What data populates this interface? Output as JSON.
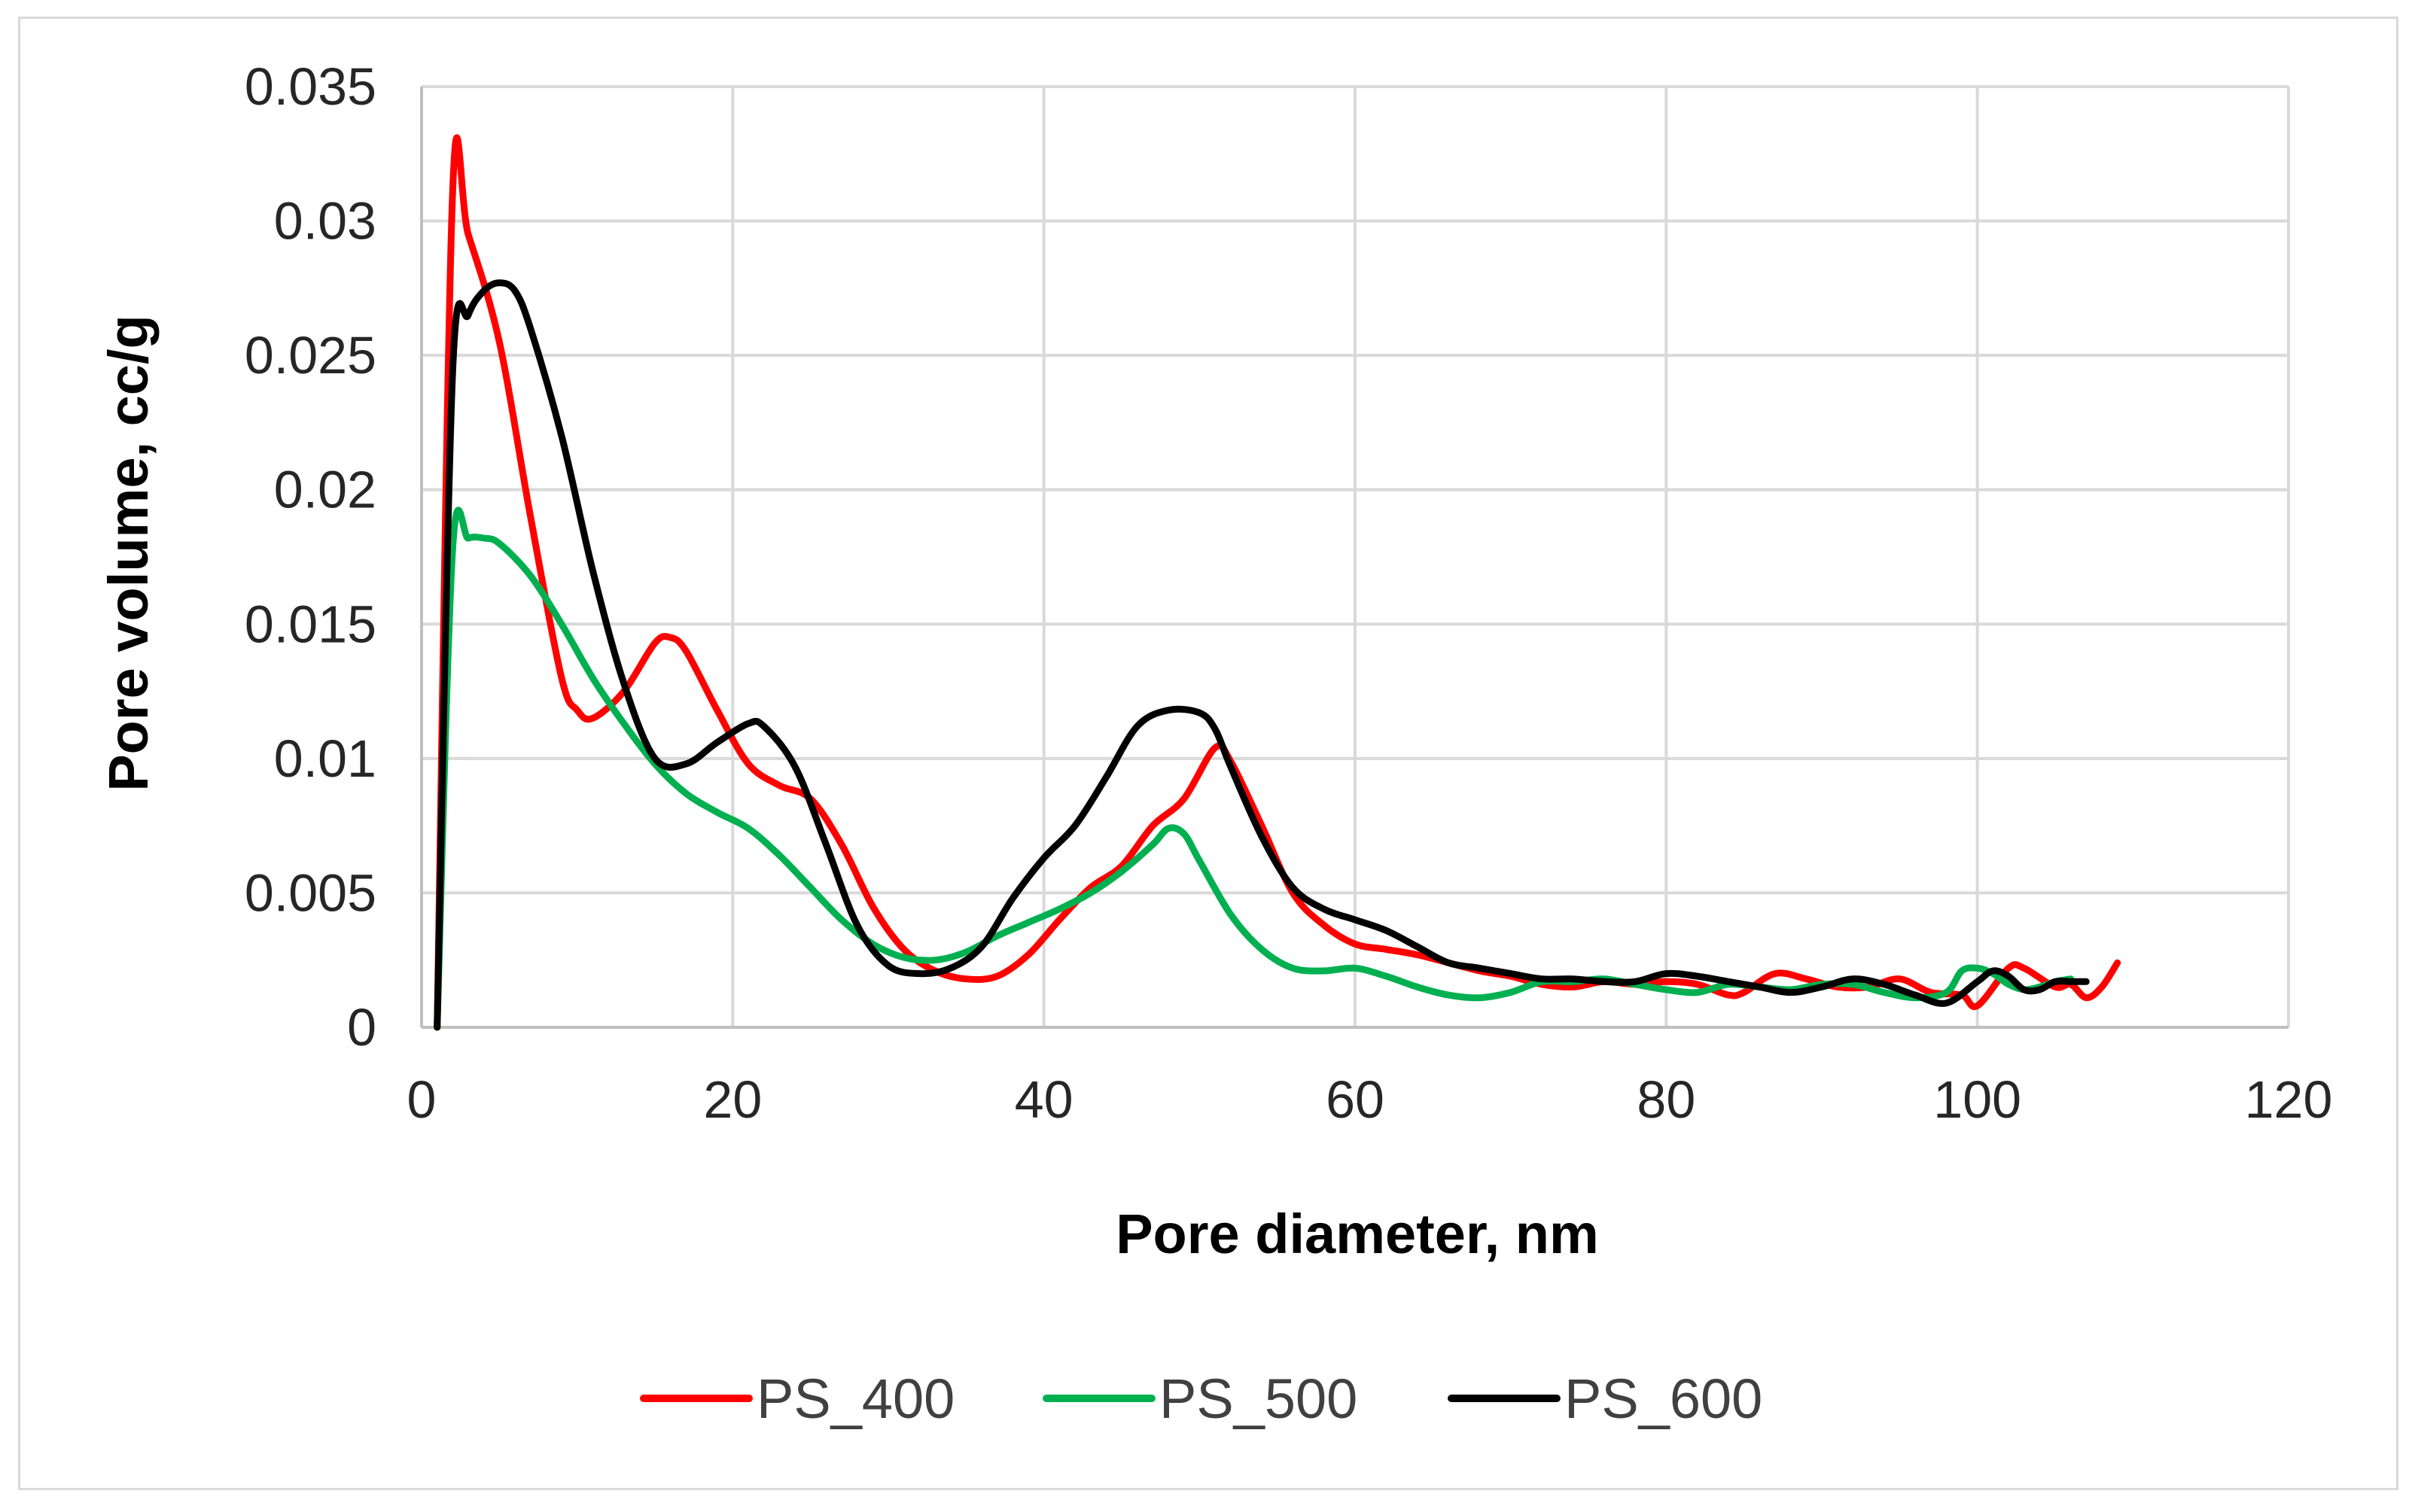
{
  "chart_data": {
    "type": "line",
    "xlabel": "Pore diameter, nm",
    "ylabel": "Pore volume, cc/g",
    "xlim": [
      0,
      120
    ],
    "ylim": [
      0,
      0.035
    ],
    "xticks": [
      0,
      20,
      40,
      60,
      80,
      100,
      120
    ],
    "yticks": [
      0,
      0.005,
      0.01,
      0.015,
      0.02,
      0.025,
      0.03,
      0.035
    ],
    "xtick_labels": [
      "0",
      "20",
      "40",
      "60",
      "80",
      "100",
      "120"
    ],
    "ytick_labels": [
      "0",
      "0.005",
      "0.01",
      "0.015",
      "0.02",
      "0.025",
      "0.03",
      "0.035"
    ],
    "grid": true,
    "legend_position": "bottom",
    "series": [
      {
        "name": "PS_400",
        "color": "#ff0000",
        "points": [
          [
            1,
            0
          ],
          [
            2,
            0.0311
          ],
          [
            3,
            0.0295
          ],
          [
            5,
            0.0255
          ],
          [
            7,
            0.019
          ],
          [
            9,
            0.013
          ],
          [
            10,
            0.0118
          ],
          [
            11,
            0.0115
          ],
          [
            13,
            0.0125
          ],
          [
            15,
            0.0143
          ],
          [
            16,
            0.0145
          ],
          [
            17,
            0.014
          ],
          [
            19,
            0.0118
          ],
          [
            21,
            0.0098
          ],
          [
            23,
            0.009
          ],
          [
            25,
            0.0085
          ],
          [
            27,
            0.0068
          ],
          [
            29,
            0.0045
          ],
          [
            31,
            0.0029
          ],
          [
            33,
            0.0021
          ],
          [
            35,
            0.0018
          ],
          [
            37,
            0.0019
          ],
          [
            39,
            0.0027
          ],
          [
            41,
            0.004
          ],
          [
            43,
            0.0052
          ],
          [
            45,
            0.006
          ],
          [
            47,
            0.0075
          ],
          [
            49,
            0.0085
          ],
          [
            51,
            0.0104
          ],
          [
            52,
            0.0099
          ],
          [
            54,
            0.0075
          ],
          [
            56,
            0.005
          ],
          [
            58,
            0.0038
          ],
          [
            60,
            0.0031
          ],
          [
            62,
            0.0029
          ],
          [
            64,
            0.0027
          ],
          [
            66,
            0.0024
          ],
          [
            68,
            0.0021
          ],
          [
            70,
            0.0019
          ],
          [
            72,
            0.0016
          ],
          [
            74,
            0.0015
          ],
          [
            76,
            0.0017
          ],
          [
            78,
            0.0016
          ],
          [
            80,
            0.0017
          ],
          [
            82,
            0.0016
          ],
          [
            84,
            0.0012
          ],
          [
            85,
            0.0013
          ],
          [
            87,
            0.002
          ],
          [
            89,
            0.0018
          ],
          [
            91,
            0.0015
          ],
          [
            93,
            0.0015
          ],
          [
            95,
            0.0018
          ],
          [
            97,
            0.0013
          ],
          [
            99,
            0.0012
          ],
          [
            100,
            0.0008
          ],
          [
            102,
            0.0022
          ],
          [
            103,
            0.0022
          ],
          [
            105,
            0.0015
          ],
          [
            106,
            0.0016
          ],
          [
            107,
            0.0011
          ],
          [
            108,
            0.0015
          ],
          [
            109,
            0.0024
          ]
        ]
      },
      {
        "name": "PS_500",
        "color": "#00b050",
        "points": [
          [
            1,
            0
          ],
          [
            2,
            0.0178
          ],
          [
            3,
            0.0182
          ],
          [
            4,
            0.0182
          ],
          [
            5,
            0.018
          ],
          [
            7,
            0.0168
          ],
          [
            9,
            0.015
          ],
          [
            11,
            0.013
          ],
          [
            13,
            0.0113
          ],
          [
            15,
            0.0098
          ],
          [
            17,
            0.0087
          ],
          [
            19,
            0.008
          ],
          [
            21,
            0.0074
          ],
          [
            23,
            0.0064
          ],
          [
            25,
            0.0052
          ],
          [
            27,
            0.004
          ],
          [
            29,
            0.0031
          ],
          [
            31,
            0.0026
          ],
          [
            33,
            0.0025
          ],
          [
            35,
            0.0028
          ],
          [
            37,
            0.0034
          ],
          [
            39,
            0.0039
          ],
          [
            41,
            0.0044
          ],
          [
            43,
            0.005
          ],
          [
            45,
            0.0058
          ],
          [
            47,
            0.0068
          ],
          [
            48,
            0.0074
          ],
          [
            49,
            0.0072
          ],
          [
            50,
            0.0062
          ],
          [
            52,
            0.0042
          ],
          [
            54,
            0.0029
          ],
          [
            56,
            0.0022
          ],
          [
            58,
            0.0021
          ],
          [
            60,
            0.0022
          ],
          [
            62,
            0.0019
          ],
          [
            64,
            0.0015
          ],
          [
            66,
            0.0012
          ],
          [
            68,
            0.0011
          ],
          [
            70,
            0.0013
          ],
          [
            72,
            0.0017
          ],
          [
            74,
            0.0017
          ],
          [
            76,
            0.0018
          ],
          [
            78,
            0.0016
          ],
          [
            80,
            0.0014
          ],
          [
            82,
            0.0013
          ],
          [
            84,
            0.0016
          ],
          [
            86,
            0.0015
          ],
          [
            88,
            0.0014
          ],
          [
            90,
            0.0016
          ],
          [
            92,
            0.0016
          ],
          [
            94,
            0.0013
          ],
          [
            96,
            0.0011
          ],
          [
            98,
            0.0013
          ],
          [
            99,
            0.0021
          ],
          [
            100,
            0.0022
          ],
          [
            101,
            0.002
          ],
          [
            102,
            0.0016
          ],
          [
            103,
            0.0014
          ],
          [
            104,
            0.0015
          ],
          [
            105,
            0.0017
          ],
          [
            106,
            0.0018
          ]
        ]
      },
      {
        "name": "PS_600",
        "color": "#000000",
        "points": [
          [
            1,
            0
          ],
          [
            2,
            0.0244
          ],
          [
            3,
            0.0265
          ],
          [
            4,
            0.0274
          ],
          [
            5,
            0.0277
          ],
          [
            6,
            0.0274
          ],
          [
            7,
            0.026
          ],
          [
            9,
            0.022
          ],
          [
            11,
            0.017
          ],
          [
            13,
            0.0128
          ],
          [
            15,
            0.01
          ],
          [
            17,
            0.0098
          ],
          [
            19,
            0.0106
          ],
          [
            21,
            0.0113
          ],
          [
            22,
            0.0112
          ],
          [
            24,
            0.0097
          ],
          [
            26,
            0.0068
          ],
          [
            28,
            0.0038
          ],
          [
            30,
            0.0023
          ],
          [
            32,
            0.002
          ],
          [
            34,
            0.0022
          ],
          [
            36,
            0.003
          ],
          [
            38,
            0.0048
          ],
          [
            40,
            0.0063
          ],
          [
            42,
            0.0075
          ],
          [
            44,
            0.0093
          ],
          [
            46,
            0.0112
          ],
          [
            48,
            0.0118
          ],
          [
            50,
            0.0117
          ],
          [
            51,
            0.0111
          ],
          [
            52,
            0.0097
          ],
          [
            54,
            0.0071
          ],
          [
            56,
            0.0052
          ],
          [
            58,
            0.0044
          ],
          [
            60,
            0.004
          ],
          [
            62,
            0.0036
          ],
          [
            64,
            0.003
          ],
          [
            66,
            0.0024
          ],
          [
            68,
            0.0022
          ],
          [
            70,
            0.002
          ],
          [
            72,
            0.0018
          ],
          [
            74,
            0.0018
          ],
          [
            76,
            0.0017
          ],
          [
            78,
            0.0017
          ],
          [
            80,
            0.002
          ],
          [
            82,
            0.0019
          ],
          [
            84,
            0.0017
          ],
          [
            86,
            0.0015
          ],
          [
            88,
            0.0013
          ],
          [
            90,
            0.0015
          ],
          [
            92,
            0.0018
          ],
          [
            94,
            0.0016
          ],
          [
            96,
            0.0012
          ],
          [
            98,
            0.0009
          ],
          [
            100,
            0.0017
          ],
          [
            101,
            0.0021
          ],
          [
            102,
            0.0019
          ],
          [
            103,
            0.0014
          ],
          [
            104,
            0.0014
          ],
          [
            105,
            0.0017
          ],
          [
            106,
            0.0017
          ],
          [
            107,
            0.0017
          ]
        ]
      }
    ]
  }
}
